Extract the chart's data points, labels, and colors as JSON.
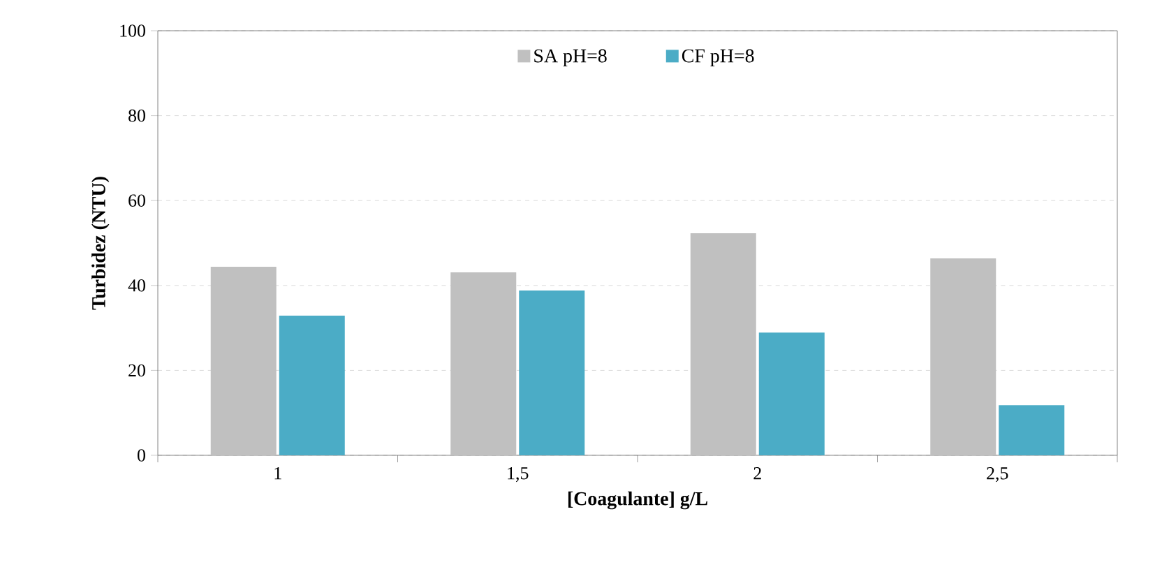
{
  "chart_data": {
    "type": "bar",
    "xlabel": "[Coagulante] g/L",
    "ylabel": "Turbidez (NTU)",
    "categories": [
      "1",
      "1,5",
      "2",
      "2,5"
    ],
    "series": [
      {
        "name": "SA pH=8",
        "color": "#c0c0c0",
        "values": [
          44.4,
          43.1,
          52.3,
          46.4
        ]
      },
      {
        "name": "CF pH=8",
        "color": "#4bacc6",
        "values": [
          32.9,
          38.8,
          28.9,
          11.8
        ]
      }
    ],
    "ylim": [
      0,
      100
    ],
    "yticks": [
      0,
      20,
      40,
      60,
      80,
      100
    ],
    "grid": "y",
    "legend": "top"
  }
}
